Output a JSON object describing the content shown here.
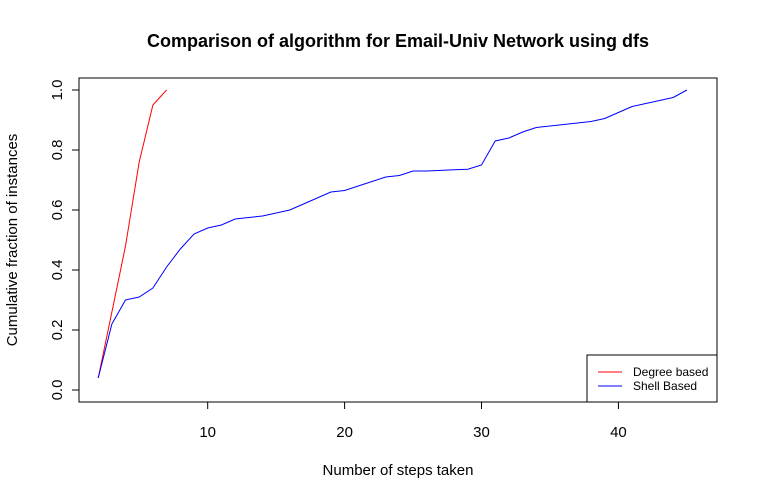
{
  "chart_data": {
    "type": "line",
    "title": "Comparison of algorithm for Email-Univ Network using dfs",
    "xlabel": "Number of steps taken",
    "ylabel": "Cumulative fraction of instances",
    "xlim": [
      0.6,
      47.2
    ],
    "ylim": [
      -0.04,
      1.04
    ],
    "xticks": [
      10,
      20,
      30,
      40
    ],
    "xtick_labels": [
      "10",
      "20",
      "30",
      "40"
    ],
    "yticks": [
      0.0,
      0.2,
      0.4,
      0.6,
      0.8,
      1.0
    ],
    "ytick_labels": [
      "0.0",
      "0.2",
      "0.4",
      "0.6",
      "0.8",
      "1.0"
    ],
    "grid": false,
    "legend_position": "bottom-right",
    "series": [
      {
        "name": "Degree based",
        "color": "#ff0000",
        "x": [
          2,
          3,
          4,
          5,
          6,
          7
        ],
        "y": [
          0.04,
          0.26,
          0.48,
          0.76,
          0.95,
          1.0
        ]
      },
      {
        "name": "Shell Based",
        "color": "#0000ff",
        "x": [
          2,
          3,
          4,
          5,
          6,
          7,
          8,
          9,
          10,
          11,
          12,
          13,
          14,
          15,
          16,
          17,
          18,
          19,
          20,
          21,
          22,
          23,
          24,
          25,
          26,
          27,
          28,
          29,
          30,
          31,
          32,
          33,
          34,
          35,
          36,
          37,
          38,
          39,
          40,
          41,
          42,
          43,
          44,
          45
        ],
        "y": [
          0.04,
          0.22,
          0.3,
          0.31,
          0.34,
          0.41,
          0.47,
          0.52,
          0.54,
          0.55,
          0.57,
          0.575,
          0.58,
          0.59,
          0.6,
          0.62,
          0.64,
          0.66,
          0.665,
          0.68,
          0.695,
          0.71,
          0.715,
          0.73,
          0.73,
          0.732,
          0.734,
          0.736,
          0.75,
          0.83,
          0.84,
          0.86,
          0.875,
          0.88,
          0.885,
          0.89,
          0.895,
          0.905,
          0.925,
          0.945,
          0.955,
          0.965,
          0.975,
          1.0
        ]
      }
    ]
  }
}
